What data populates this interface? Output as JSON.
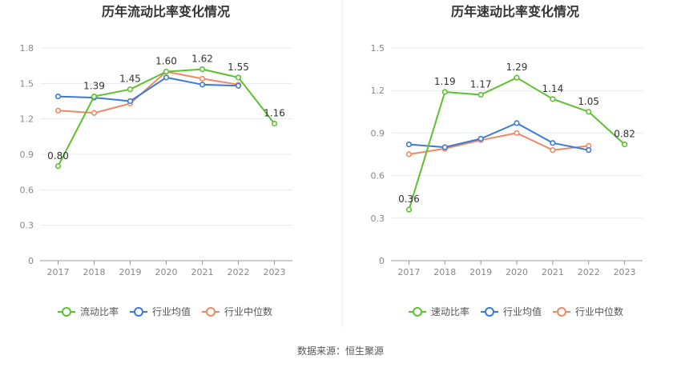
{
  "source": "数据来源：恒生聚源",
  "chart_data": [
    {
      "type": "line",
      "title": "历年流动比率变化情况",
      "categories": [
        "2017",
        "2018",
        "2019",
        "2020",
        "2021",
        "2022",
        "2023"
      ],
      "ylim": [
        0,
        1.8
      ],
      "yticks": [
        "0",
        "0.3",
        "0.6",
        "0.9",
        "1.2",
        "1.5",
        "1.8"
      ],
      "grid": true,
      "legend_position": "bottom",
      "series": [
        {
          "name": "流动比率",
          "color": "#5cc130",
          "values": [
            0.8,
            1.39,
            1.45,
            1.6,
            1.62,
            1.55,
            1.16
          ],
          "labels": [
            "0.80",
            "1.39",
            "1.45",
            "1.60",
            "1.62",
            "1.55",
            "1.16"
          ]
        },
        {
          "name": "行业均值",
          "color": "#3b78d8",
          "values": [
            1.39,
            1.38,
            1.35,
            1.55,
            1.49,
            1.48,
            null
          ],
          "labels": null
        },
        {
          "name": "行业中位数",
          "color": "#ee8a62",
          "values": [
            1.27,
            1.25,
            1.33,
            1.6,
            1.54,
            1.49,
            null
          ],
          "labels": null
        }
      ]
    },
    {
      "type": "line",
      "title": "历年速动比率变化情况",
      "categories": [
        "2017",
        "2018",
        "2019",
        "2020",
        "2021",
        "2022",
        "2023"
      ],
      "ylim": [
        0,
        1.5
      ],
      "yticks": [
        "0",
        "0.3",
        "0.6",
        "0.9",
        "1.2",
        "1.5"
      ],
      "grid": true,
      "legend_position": "bottom",
      "series": [
        {
          "name": "速动比率",
          "color": "#5cc130",
          "values": [
            0.36,
            1.19,
            1.17,
            1.29,
            1.14,
            1.05,
            0.82
          ],
          "labels": [
            "0.36",
            "1.19",
            "1.17",
            "1.29",
            "1.14",
            "1.05",
            "0.82"
          ]
        },
        {
          "name": "行业均值",
          "color": "#3b78d8",
          "values": [
            0.82,
            0.8,
            0.86,
            0.97,
            0.83,
            0.78,
            null
          ],
          "labels": null
        },
        {
          "name": "行业中位数",
          "color": "#ee8a62",
          "values": [
            0.75,
            0.79,
            0.85,
            0.9,
            0.78,
            0.81,
            null
          ],
          "labels": null
        }
      ]
    }
  ]
}
